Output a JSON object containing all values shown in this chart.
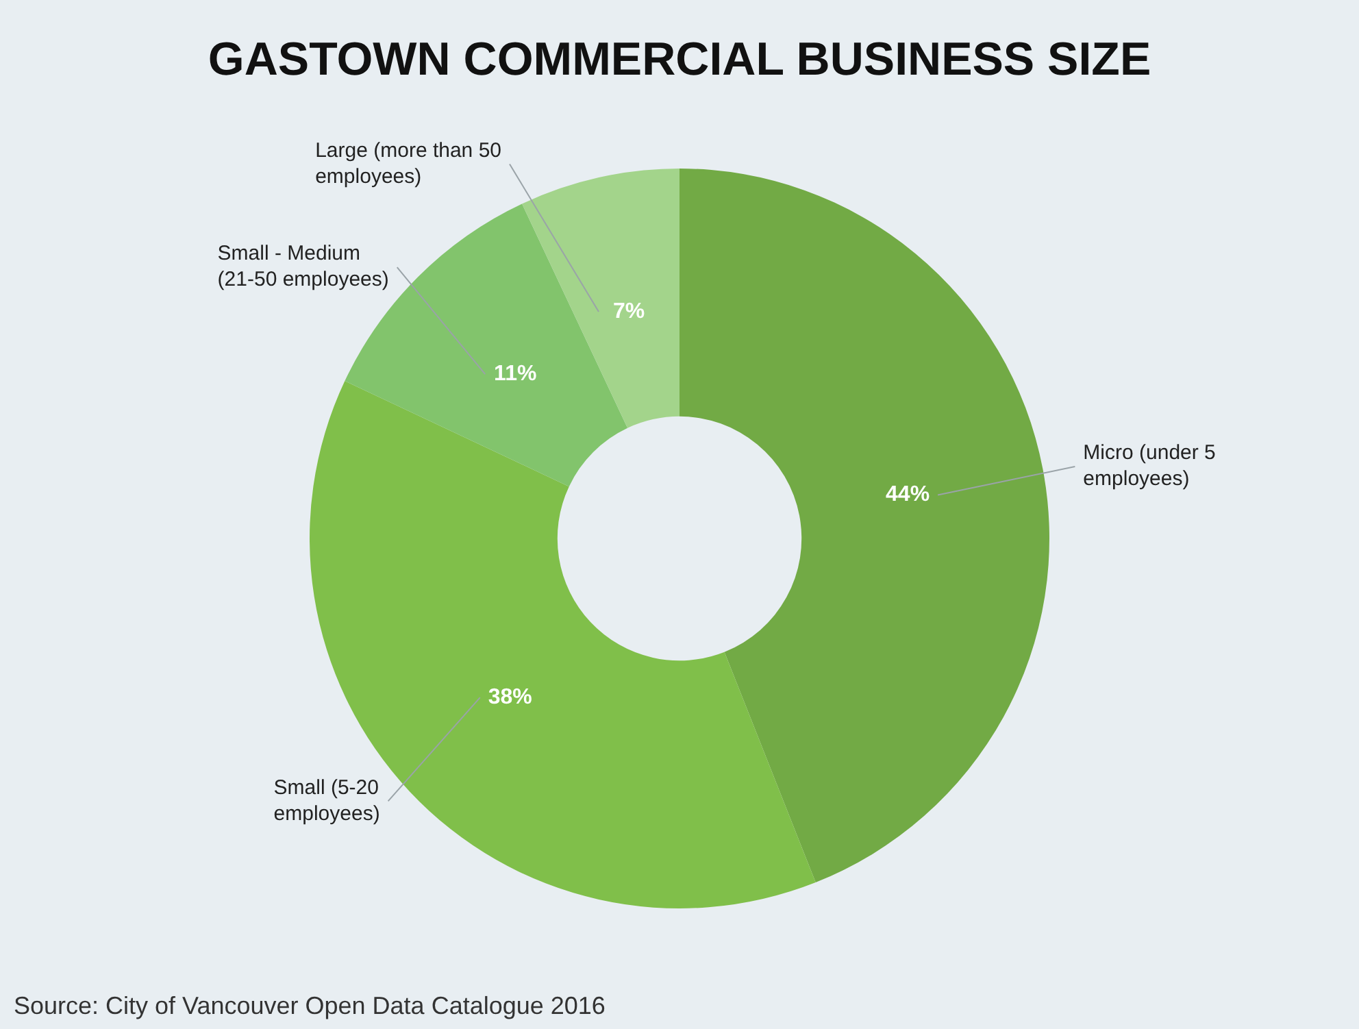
{
  "chart_data": {
    "type": "donut",
    "title": "GASTOWN COMMERCIAL BUSINESS SIZE",
    "categories": [
      "Micro (under 5 employees)",
      "Small (5-20 employees)",
      "Small - Medium (21-50 employees)",
      "Large (more than 50 employees)"
    ],
    "values": [
      44,
      38,
      11,
      7
    ],
    "colors": [
      "#72aa45",
      "#80bf4a",
      "#82c46c",
      "#a3d48b"
    ],
    "value_labels": [
      "44%",
      "38%",
      "11%",
      "7%"
    ],
    "legend": false,
    "annotations": [
      "Source: City of Vancouver Open Data Catalogue 2016"
    ]
  }
}
